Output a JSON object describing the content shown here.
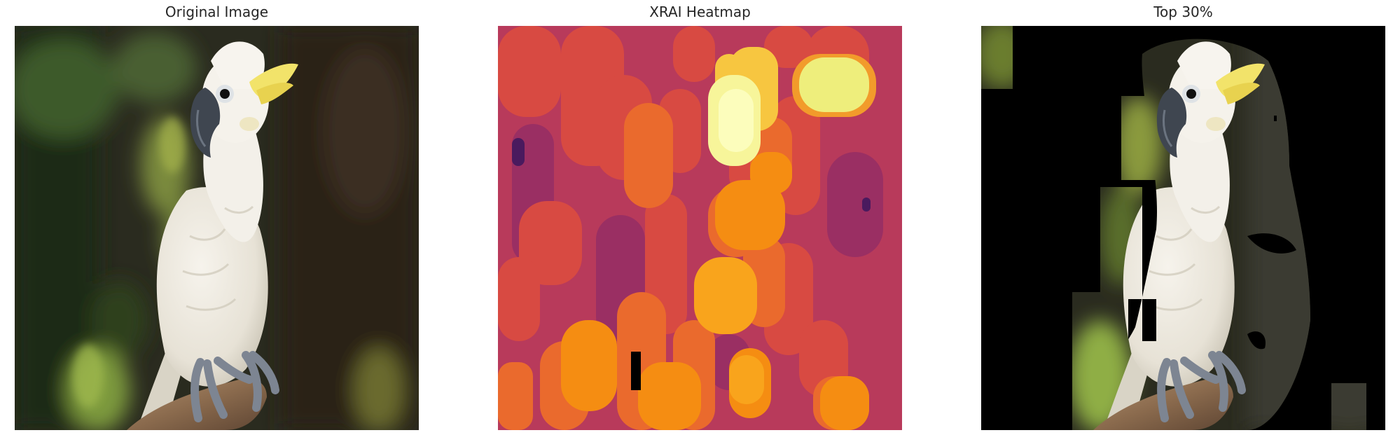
{
  "panels": [
    {
      "title": "Original Image"
    },
    {
      "title": "XRAI Heatmap"
    },
    {
      "title": "Top 30%"
    }
  ]
}
